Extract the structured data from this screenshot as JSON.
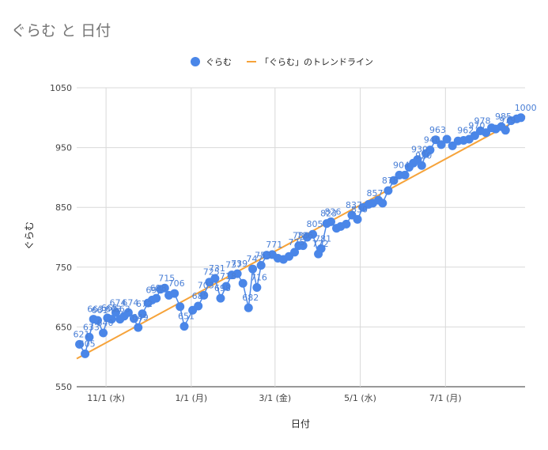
{
  "chart_data": {
    "type": "scatter",
    "title": "ぐらむ と 日付",
    "xlabel": "日付",
    "ylabel": "ぐらむ",
    "ylim": [
      550,
      1050
    ],
    "y_ticks": [
      550,
      650,
      750,
      850,
      950,
      1050
    ],
    "x_ticks": [
      {
        "date": "2023-11-01",
        "label": "11/1 (水)"
      },
      {
        "date": "2024-01-01",
        "label": "1/1 (月)"
      },
      {
        "date": "2024-03-01",
        "label": "3/1 (金)"
      },
      {
        "date": "2024-05-01",
        "label": "5/1 (水)"
      },
      {
        "date": "2024-07-01",
        "label": "7/1 (月)"
      }
    ],
    "xlim": [
      "2023-10-11",
      "2024-08-27"
    ],
    "grid": true,
    "legend_position": "top",
    "series": [
      {
        "name": "ぐらむ",
        "kind": "points",
        "color": "#4a86e8",
        "points": [
          [
            "2023-10-13",
            621
          ],
          [
            "2023-10-17",
            605
          ],
          [
            "2023-10-20",
            633
          ],
          [
            "2023-10-23",
            663
          ],
          [
            "2023-10-26",
            661
          ],
          [
            "2023-10-30",
            640
          ],
          [
            "2023-11-02",
            665
          ],
          [
            "2023-11-05",
            663
          ],
          [
            "2023-11-08",
            674
          ],
          [
            "2023-11-11",
            663
          ],
          [
            "2023-11-14",
            668
          ],
          [
            "2023-11-17",
            674
          ],
          [
            "2023-11-21",
            664
          ],
          [
            "2023-11-24",
            649
          ],
          [
            "2023-11-27",
            672
          ],
          [
            "2023-12-01",
            690
          ],
          [
            "2023-12-04",
            695
          ],
          [
            "2023-12-07",
            698
          ],
          [
            "2023-12-10",
            713
          ],
          [
            "2023-12-13",
            715
          ],
          [
            "2023-12-16",
            703
          ],
          [
            "2023-12-20",
            706
          ],
          [
            "2023-12-24",
            684
          ],
          [
            "2023-12-27",
            651
          ],
          [
            "2024-01-02",
            678
          ],
          [
            "2024-01-06",
            685
          ],
          [
            "2024-01-10",
            703
          ],
          [
            "2024-01-14",
            725
          ],
          [
            "2024-01-18",
            731
          ],
          [
            "2024-01-22",
            698
          ],
          [
            "2024-01-26",
            718
          ],
          [
            "2024-01-30",
            737
          ],
          [
            "2024-02-03",
            739
          ],
          [
            "2024-02-07",
            723
          ],
          [
            "2024-02-11",
            682
          ],
          [
            "2024-02-14",
            747
          ],
          [
            "2024-02-17",
            716
          ],
          [
            "2024-02-20",
            753
          ],
          [
            "2024-02-24",
            770
          ],
          [
            "2024-02-28",
            771
          ],
          [
            "2024-03-03",
            765
          ],
          [
            "2024-03-07",
            763
          ],
          [
            "2024-03-11",
            768
          ],
          [
            "2024-03-15",
            775
          ],
          [
            "2024-03-18",
            786
          ],
          [
            "2024-03-21",
            786
          ],
          [
            "2024-03-24",
            800
          ],
          [
            "2024-03-28",
            805
          ],
          [
            "2024-04-01",
            772
          ],
          [
            "2024-04-03",
            781
          ],
          [
            "2024-04-07",
            823
          ],
          [
            "2024-04-10",
            826
          ],
          [
            "2024-04-14",
            815
          ],
          [
            "2024-04-17",
            818
          ],
          [
            "2024-04-21",
            822
          ],
          [
            "2024-04-25",
            837
          ],
          [
            "2024-04-29",
            830
          ],
          [
            "2024-05-03",
            850
          ],
          [
            "2024-05-07",
            855
          ],
          [
            "2024-05-10",
            857
          ],
          [
            "2024-05-14",
            862
          ],
          [
            "2024-05-17",
            857
          ],
          [
            "2024-05-21",
            878
          ],
          [
            "2024-05-25",
            895
          ],
          [
            "2024-05-29",
            904
          ],
          [
            "2024-06-02",
            904
          ],
          [
            "2024-06-05",
            917
          ],
          [
            "2024-06-08",
            924
          ],
          [
            "2024-06-11",
            930
          ],
          [
            "2024-06-14",
            920
          ],
          [
            "2024-06-17",
            940
          ],
          [
            "2024-06-20",
            946
          ],
          [
            "2024-06-24",
            963
          ],
          [
            "2024-06-28",
            955
          ],
          [
            "2024-07-02",
            964
          ],
          [
            "2024-07-06",
            953
          ],
          [
            "2024-07-10",
            961
          ],
          [
            "2024-07-14",
            962
          ],
          [
            "2024-07-18",
            964
          ],
          [
            "2024-07-22",
            970
          ],
          [
            "2024-07-26",
            978
          ],
          [
            "2024-07-30",
            975
          ],
          [
            "2024-08-03",
            983
          ],
          [
            "2024-08-06",
            981
          ],
          [
            "2024-08-10",
            985
          ],
          [
            "2024-08-13",
            979
          ],
          [
            "2024-08-17",
            995
          ],
          [
            "2024-08-21",
            998
          ],
          [
            "2024-08-24",
            1000
          ]
        ]
      },
      {
        "name": "「ぐらむ」のトレンドライン",
        "kind": "trendline",
        "color": "#f6a33a",
        "points": [
          [
            "2023-10-11",
            597
          ],
          [
            "2024-08-27",
            1003
          ]
        ]
      }
    ],
    "data_labels": [
      [
        "2023-10-13",
        621
      ],
      [
        "2023-10-17",
        605
      ],
      [
        "2023-10-20",
        633
      ],
      [
        "2023-10-23",
        663
      ],
      [
        "2023-10-26",
        661
      ],
      [
        "2023-10-30",
        640
      ],
      [
        "2023-11-02",
        665
      ],
      [
        "2023-11-05",
        663
      ],
      [
        "2023-11-08",
        674
      ],
      [
        "2023-11-11",
        663
      ],
      [
        "2023-11-17",
        674
      ],
      [
        "2023-11-24",
        649
      ],
      [
        "2023-11-27",
        672
      ],
      [
        "2023-12-04",
        695
      ],
      [
        "2023-12-07",
        698
      ],
      [
        "2023-12-13",
        715
      ],
      [
        "2023-12-20",
        706
      ],
      [
        "2023-12-27",
        651
      ],
      [
        "2024-01-06",
        685
      ],
      [
        "2024-01-10",
        703
      ],
      [
        "2024-01-14",
        725
      ],
      [
        "2024-01-18",
        731
      ],
      [
        "2024-01-22",
        698
      ],
      [
        "2024-01-26",
        718
      ],
      [
        "2024-01-30",
        737
      ],
      [
        "2024-02-03",
        739
      ],
      [
        "2024-02-11",
        682
      ],
      [
        "2024-02-14",
        747
      ],
      [
        "2024-02-17",
        716
      ],
      [
        "2024-02-20",
        753
      ],
      [
        "2024-02-28",
        771
      ],
      [
        "2024-03-15",
        775
      ],
      [
        "2024-03-18",
        786
      ],
      [
        "2024-03-21",
        786
      ],
      [
        "2024-03-28",
        805
      ],
      [
        "2024-04-01",
        772
      ],
      [
        "2024-04-03",
        781
      ],
      [
        "2024-04-07",
        823
      ],
      [
        "2024-04-10",
        826
      ],
      [
        "2024-04-25",
        837
      ],
      [
        "2024-04-29",
        830
      ],
      [
        "2024-05-10",
        857
      ],
      [
        "2024-05-21",
        878
      ],
      [
        "2024-05-29",
        904
      ],
      [
        "2024-06-11",
        930
      ],
      [
        "2024-06-14",
        920
      ],
      [
        "2024-06-20",
        946
      ],
      [
        "2024-06-24",
        963
      ],
      [
        "2024-07-14",
        962
      ],
      [
        "2024-07-22",
        970
      ],
      [
        "2024-07-26",
        978
      ],
      [
        "2024-08-10",
        985
      ],
      [
        "2024-08-13",
        979
      ],
      [
        "2024-08-24",
        1000
      ]
    ]
  }
}
